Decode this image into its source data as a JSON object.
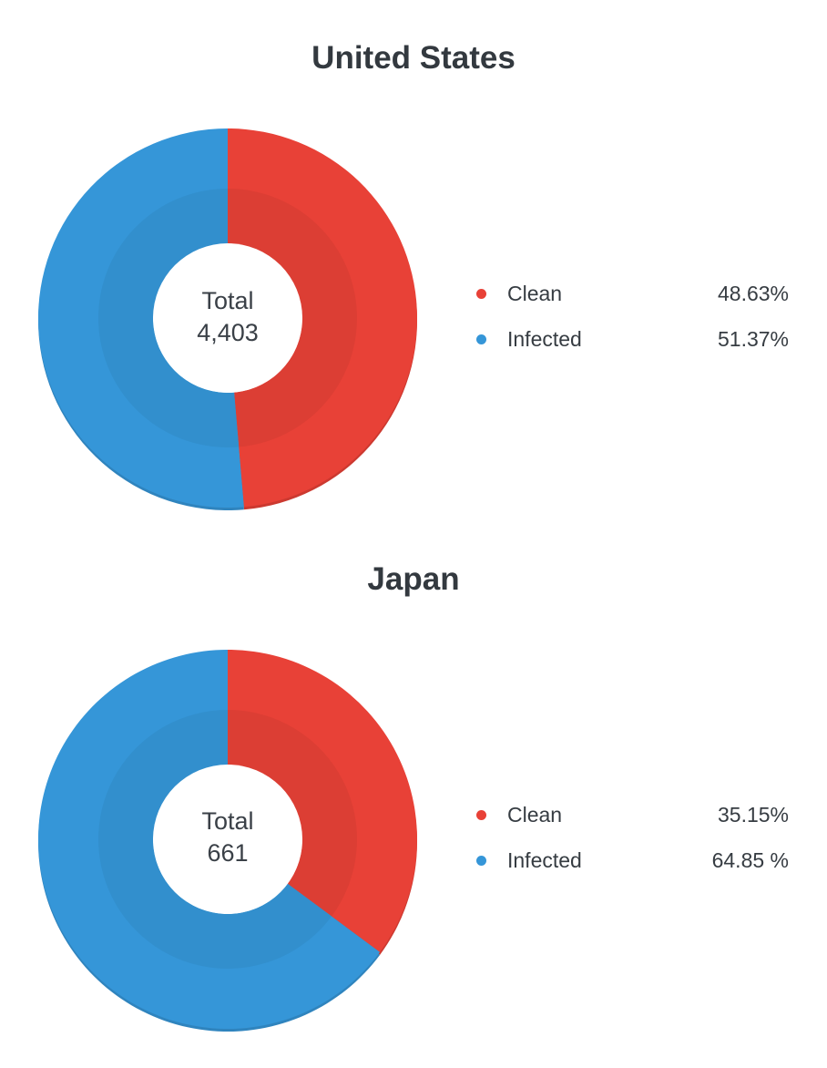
{
  "chart_data": [
    {
      "type": "pie",
      "variant": "donut",
      "title": "United States",
      "center": {
        "label": "Total",
        "value": "4,403"
      },
      "categories": [
        "Clean",
        "Infected"
      ],
      "values": [
        48.63,
        51.37
      ],
      "value_labels": [
        "48.63%",
        "51.37%"
      ],
      "colors": [
        "#e84137",
        "#3596d8"
      ],
      "legend_position": "right"
    },
    {
      "type": "pie",
      "variant": "donut",
      "title": "Japan",
      "center": {
        "label": "Total",
        "value": "661"
      },
      "categories": [
        "Clean",
        "Infected"
      ],
      "values": [
        35.15,
        64.85
      ],
      "value_labels": [
        "35.15%",
        "64.85 %"
      ],
      "colors": [
        "#e84137",
        "#3596d8"
      ],
      "legend_position": "right"
    }
  ]
}
